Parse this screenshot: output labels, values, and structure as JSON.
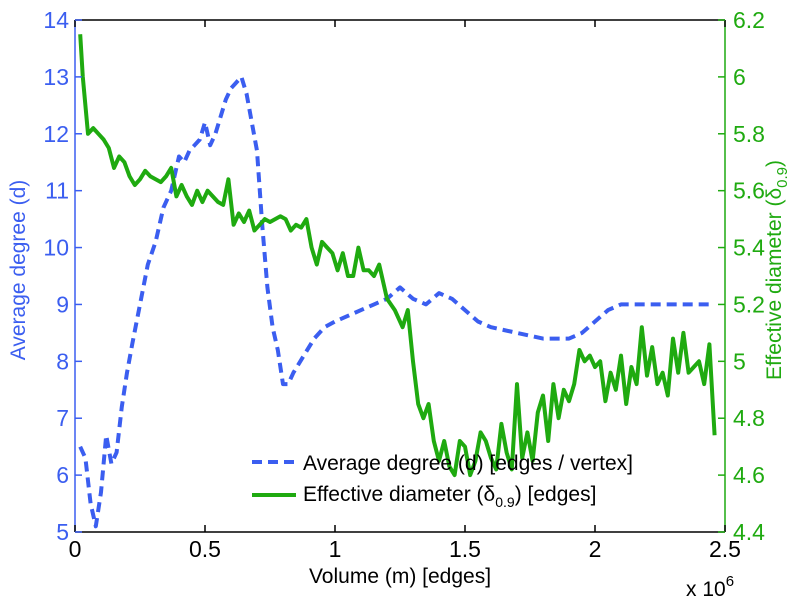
{
  "chart_data": {
    "type": "line",
    "title": "",
    "xlabel": "Volume (m) [edges]",
    "x_multiplier": "x 10",
    "x_multiplier_exp": "6",
    "xlim": [
      0,
      2.5
    ],
    "xticks": [
      0,
      0.5,
      1,
      1.5,
      2,
      2.5
    ],
    "xtick_labels": [
      "0",
      "0.5",
      "1",
      "1.5",
      "2",
      "2.5"
    ],
    "ylabel_left": "Average degree (d)",
    "ylim_left": [
      5,
      14
    ],
    "yticks_left": [
      5,
      6,
      7,
      8,
      9,
      10,
      11,
      12,
      13,
      14
    ],
    "ytick_labels_left": [
      "5",
      "6",
      "7",
      "8",
      "9",
      "10",
      "11",
      "12",
      "13",
      "14"
    ],
    "ylabel_right": "Effective diameter (δ",
    "ylabel_right_sub": "0.9",
    "ylabel_right_end": ")",
    "ylim_right": [
      4.4,
      6.2
    ],
    "yticks_right": [
      4.4,
      4.6,
      4.8,
      5,
      5.2,
      5.4,
      5.6,
      5.8,
      6,
      6.2
    ],
    "ytick_labels_right": [
      "4.4",
      "4.6",
      "4.8",
      "5",
      "5.2",
      "5.4",
      "5.6",
      "5.8",
      "6",
      "6.2"
    ],
    "legend_position": "bottom-right",
    "series": [
      {
        "name": "Average degree (d) [edges / vertex]",
        "legend_label": "Average degree (d) [edges / vertex]",
        "axis": "left",
        "color": "#3b5ef0",
        "style": "dashed",
        "x": [
          0.02,
          0.04,
          0.06,
          0.08,
          0.1,
          0.12,
          0.14,
          0.16,
          0.18,
          0.2,
          0.22,
          0.25,
          0.28,
          0.31,
          0.34,
          0.37,
          0.4,
          0.42,
          0.44,
          0.46,
          0.48,
          0.5,
          0.52,
          0.54,
          0.56,
          0.58,
          0.6,
          0.62,
          0.64,
          0.66,
          0.68,
          0.7,
          0.72,
          0.74,
          0.76,
          0.78,
          0.8,
          0.82,
          0.84,
          0.88,
          0.92,
          0.96,
          1.0,
          1.05,
          1.1,
          1.15,
          1.2,
          1.25,
          1.3,
          1.35,
          1.4,
          1.45,
          1.5,
          1.55,
          1.6,
          1.7,
          1.8,
          1.9,
          1.95,
          2.0,
          2.05,
          2.1,
          2.15,
          2.2,
          2.25,
          2.3,
          2.35,
          2.4,
          2.45
        ],
        "values": [
          6.5,
          6.3,
          5.5,
          5.1,
          5.7,
          6.7,
          6.2,
          6.4,
          7.2,
          7.8,
          8.3,
          9.0,
          9.7,
          10.1,
          10.7,
          11.0,
          11.6,
          11.5,
          11.7,
          11.8,
          11.9,
          12.2,
          11.8,
          12.0,
          12.3,
          12.6,
          12.8,
          12.9,
          13.0,
          12.7,
          12.2,
          11.7,
          10.4,
          9.3,
          8.6,
          8.2,
          7.6,
          7.6,
          7.8,
          8.1,
          8.4,
          8.6,
          8.7,
          8.8,
          8.9,
          9.0,
          9.1,
          9.3,
          9.1,
          9.0,
          9.2,
          9.1,
          8.9,
          8.7,
          8.6,
          8.5,
          8.4,
          8.4,
          8.5,
          8.7,
          8.9,
          9.0,
          9.0,
          9.0,
          9.0,
          9.0,
          9.0,
          9.0,
          9.0
        ]
      },
      {
        "name": "Effective diameter (δ0.9) [edges]",
        "legend_label_prefix": "Effective diameter (δ",
        "legend_label_sub": "0.9",
        "legend_label_suffix": ") [edges]",
        "axis": "right",
        "color": "#1faa10",
        "style": "solid",
        "x": [
          0.02,
          0.03,
          0.05,
          0.07,
          0.09,
          0.11,
          0.13,
          0.15,
          0.17,
          0.19,
          0.21,
          0.23,
          0.25,
          0.27,
          0.29,
          0.31,
          0.33,
          0.35,
          0.37,
          0.39,
          0.41,
          0.43,
          0.45,
          0.47,
          0.49,
          0.51,
          0.53,
          0.55,
          0.57,
          0.59,
          0.61,
          0.63,
          0.65,
          0.67,
          0.69,
          0.71,
          0.73,
          0.75,
          0.77,
          0.79,
          0.81,
          0.83,
          0.85,
          0.87,
          0.89,
          0.91,
          0.93,
          0.95,
          0.97,
          0.99,
          1.01,
          1.03,
          1.05,
          1.07,
          1.09,
          1.11,
          1.13,
          1.15,
          1.17,
          1.2,
          1.23,
          1.26,
          1.28,
          1.3,
          1.32,
          1.34,
          1.36,
          1.38,
          1.4,
          1.42,
          1.44,
          1.46,
          1.48,
          1.5,
          1.52,
          1.54,
          1.56,
          1.58,
          1.6,
          1.62,
          1.64,
          1.66,
          1.68,
          1.7,
          1.72,
          1.74,
          1.76,
          1.78,
          1.8,
          1.82,
          1.84,
          1.86,
          1.88,
          1.9,
          1.92,
          1.94,
          1.96,
          1.98,
          2.0,
          2.02,
          2.04,
          2.06,
          2.08,
          2.1,
          2.12,
          2.14,
          2.16,
          2.18,
          2.2,
          2.22,
          2.24,
          2.26,
          2.28,
          2.3,
          2.32,
          2.34,
          2.36,
          2.38,
          2.4,
          2.42,
          2.44,
          2.46
        ],
        "values": [
          6.15,
          6.0,
          5.8,
          5.82,
          5.8,
          5.78,
          5.75,
          5.68,
          5.72,
          5.7,
          5.65,
          5.62,
          5.64,
          5.67,
          5.65,
          5.64,
          5.63,
          5.65,
          5.68,
          5.58,
          5.62,
          5.58,
          5.55,
          5.6,
          5.56,
          5.6,
          5.58,
          5.56,
          5.55,
          5.64,
          5.48,
          5.52,
          5.49,
          5.53,
          5.46,
          5.48,
          5.5,
          5.49,
          5.5,
          5.51,
          5.5,
          5.46,
          5.48,
          5.47,
          5.5,
          5.4,
          5.34,
          5.42,
          5.4,
          5.38,
          5.32,
          5.38,
          5.3,
          5.3,
          5.4,
          5.32,
          5.32,
          5.3,
          5.34,
          5.22,
          5.18,
          5.12,
          5.18,
          5.0,
          4.85,
          4.8,
          4.85,
          4.72,
          4.65,
          4.72,
          4.63,
          4.6,
          4.72,
          4.7,
          4.6,
          4.65,
          4.75,
          4.72,
          4.66,
          4.62,
          4.78,
          4.68,
          4.62,
          4.92,
          4.66,
          4.75,
          4.65,
          4.82,
          4.88,
          4.72,
          4.92,
          4.8,
          4.9,
          4.86,
          4.92,
          5.04,
          5.0,
          5.02,
          4.98,
          5.0,
          4.86,
          4.96,
          4.9,
          5.02,
          4.85,
          4.98,
          4.92,
          5.12,
          4.95,
          5.05,
          4.92,
          4.96,
          4.88,
          5.08,
          4.96,
          5.1,
          4.96,
          4.98,
          5.0,
          4.92,
          5.06,
          4.74
        ]
      }
    ]
  }
}
